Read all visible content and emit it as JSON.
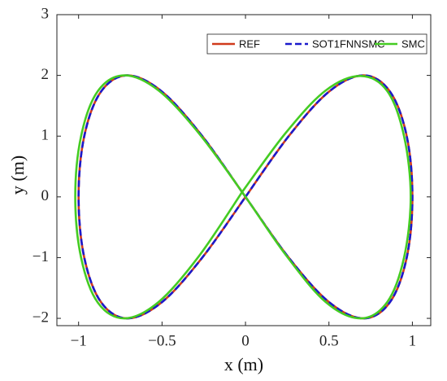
{
  "chart_data": {
    "type": "line",
    "xlabel": "x (m)",
    "ylabel": "y (m)",
    "xlim": [
      -1.13,
      1.11
    ],
    "ylim": [
      -2.12,
      3
    ],
    "xticks": [
      {
        "value": -1,
        "label": "−1"
      },
      {
        "value": -0.5,
        "label": "−0.5"
      },
      0,
      0.5,
      1
    ],
    "yticks": [
      {
        "value": -2,
        "label": "−2"
      },
      {
        "value": -1,
        "label": "−1"
      },
      0,
      1,
      2,
      3
    ],
    "legend": "upper-right",
    "series": [
      {
        "name": "REF",
        "color": "#d03a1c",
        "style": "solid",
        "x": [
          0,
          0.259,
          0.5,
          0.707,
          0.866,
          0.966,
          1,
          0.966,
          0.866,
          0.707,
          0.5,
          0.259,
          0,
          -0.259,
          -0.5,
          -0.707,
          -0.866,
          -0.966,
          -1,
          -0.966,
          -0.866,
          -0.707,
          -0.5,
          -0.259,
          0
        ],
        "values": [
          0,
          1.0,
          1.732,
          2,
          1.732,
          1.0,
          0,
          -1.0,
          -1.732,
          -2,
          -1.732,
          -1.0,
          0,
          1.0,
          1.732,
          2,
          1.732,
          1.0,
          0,
          -1.0,
          -1.732,
          -2,
          -1.732,
          -1.0,
          0
        ]
      },
      {
        "name": "SOT1FNNSMC",
        "color": "#1a1acc",
        "style": "dashed",
        "x": [
          0,
          0.259,
          0.5,
          0.707,
          0.866,
          0.966,
          1,
          0.966,
          0.866,
          0.707,
          0.5,
          0.259,
          0,
          -0.259,
          -0.5,
          -0.707,
          -0.866,
          -0.966,
          -1,
          -0.966,
          -0.866,
          -0.707,
          -0.5,
          -0.259,
          0
        ],
        "values": [
          0,
          1.0,
          1.732,
          2,
          1.732,
          1.0,
          0,
          -1.0,
          -1.732,
          -2,
          -1.732,
          -1.0,
          0,
          1.0,
          1.732,
          2,
          1.732,
          1.0,
          0,
          -1.0,
          -1.732,
          -2,
          -1.732,
          -1.0,
          0
        ]
      },
      {
        "name": "SMC",
        "color": "#44cc22",
        "style": "solid",
        "x": [
          -0.02,
          0.24,
          0.48,
          0.69,
          0.85,
          0.95,
          0.99,
          0.95,
          0.85,
          0.69,
          0.48,
          0.24,
          -0.02,
          -0.28,
          -0.52,
          -0.725,
          -0.885,
          -0.985,
          -1.02,
          -0.985,
          -0.885,
          -0.725,
          -0.52,
          -0.28,
          -0.02
        ],
        "values": [
          0.08,
          1.05,
          1.75,
          1.99,
          1.74,
          1.0,
          0,
          -1.0,
          -1.73,
          -2,
          -1.73,
          -0.95,
          0.08,
          1.05,
          1.75,
          2,
          1.74,
          1.0,
          0,
          -1.0,
          -1.74,
          -2,
          -1.73,
          -0.98,
          0.08
        ]
      }
    ]
  }
}
